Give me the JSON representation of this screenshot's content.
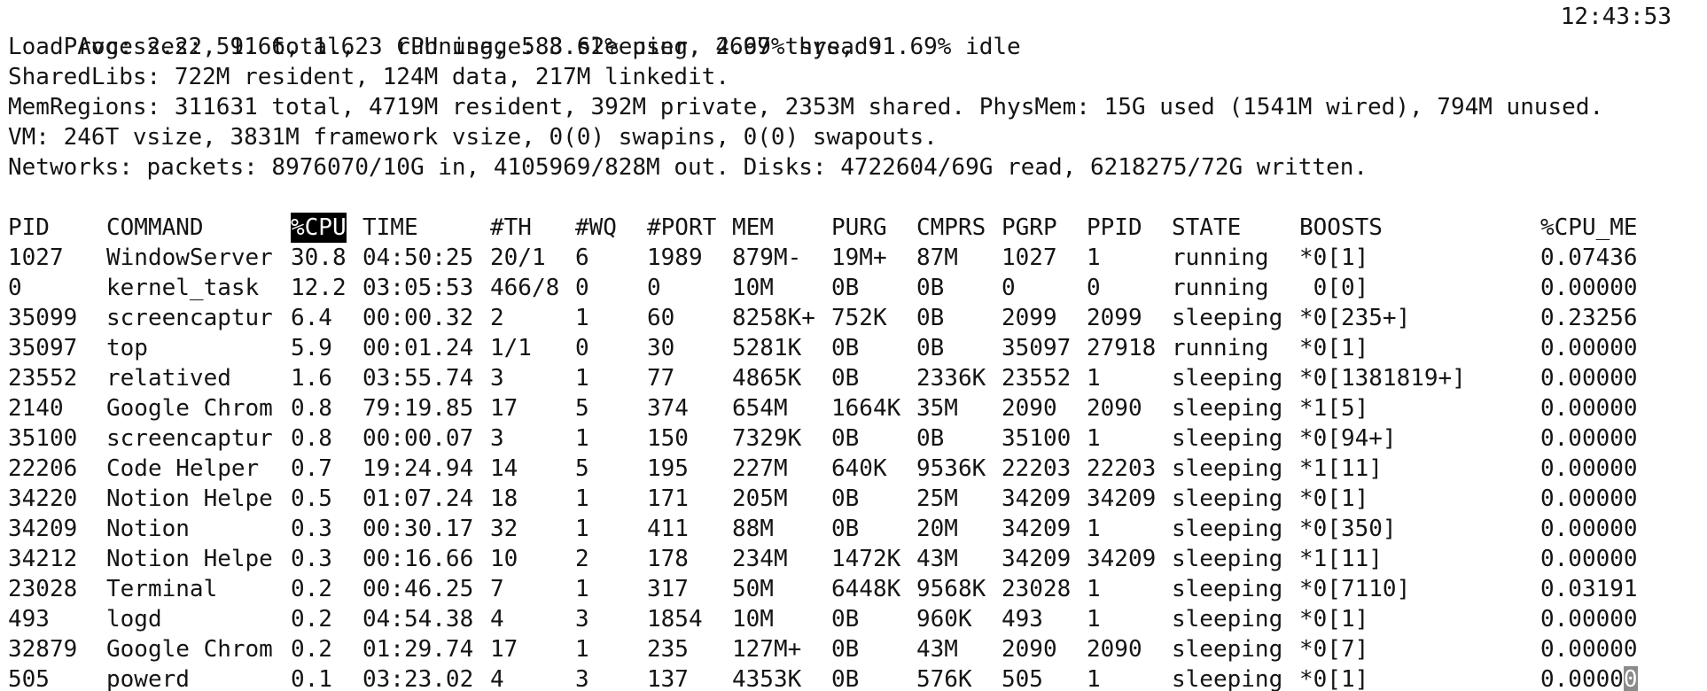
{
  "summary": {
    "processes": "Processes: 591 total, 3 running, 588 sleeping, 2699 threads",
    "clock": "12:43:53",
    "load": "Load Avg: 2.22, 1.66, 1.62  CPU usage: 3.62% user, 4.67% sys, 91.69% idle",
    "sharedlibs": "SharedLibs: 722M resident, 124M data, 217M linkedit.",
    "memregions": "MemRegions: 311631 total, 4719M resident, 392M private, 2353M shared. PhysMem: 15G used (1541M wired), 794M unused.",
    "vm": "VM: 246T vsize, 3831M framework vsize, 0(0) swapins, 0(0) swapouts.",
    "networks": "Networks: packets: 8976070/10G in, 4105969/828M out. Disks: 4722604/69G read, 6218275/72G written."
  },
  "table": {
    "headers": {
      "pid": "PID",
      "command": "COMMAND",
      "cpu": "%CPU",
      "time": "TIME",
      "th": "#TH",
      "wq": "#WQ",
      "port": "#PORT",
      "mem": "MEM",
      "purg": "PURG",
      "cmprs": "CMPRS",
      "pgrp": "PGRP",
      "ppid": "PPID",
      "state": "STATE",
      "boosts": "BOOSTS",
      "cpume": "%CPU_ME"
    },
    "sort_column": "%CPU",
    "rows": [
      {
        "pid": "1027",
        "command": "WindowServer",
        "cpu": "30.8",
        "time": "04:50:25",
        "th": "20/1",
        "wq": "6",
        "port": "1989",
        "mem": "879M-",
        "purg": "19M+",
        "cmprs": "87M",
        "pgrp": "1027",
        "ppid": "1",
        "state": "running",
        "boosts": "*0[1]",
        "cpume": "0.07436"
      },
      {
        "pid": "0",
        "command": "kernel_task",
        "cpu": "12.2",
        "time": "03:05:53",
        "th": "466/8",
        "wq": "0",
        "port": "0",
        "mem": "10M",
        "purg": "0B",
        "cmprs": "0B",
        "pgrp": "0",
        "ppid": "0",
        "state": "running",
        "boosts": " 0[0]",
        "cpume": "0.00000"
      },
      {
        "pid": "35099",
        "command": "screencaptur",
        "cpu": "6.4",
        "time": "00:00.32",
        "th": "2",
        "wq": "1",
        "port": "60",
        "mem": "8258K+",
        "purg": "752K",
        "cmprs": "0B",
        "pgrp": "2099",
        "ppid": "2099",
        "state": "sleeping",
        "boosts": "*0[235+]",
        "cpume": "0.23256"
      },
      {
        "pid": "35097",
        "command": "top",
        "cpu": "5.9",
        "time": "00:01.24",
        "th": "1/1",
        "wq": "0",
        "port": "30",
        "mem": "5281K",
        "purg": "0B",
        "cmprs": "0B",
        "pgrp": "35097",
        "ppid": "27918",
        "state": "running",
        "boosts": "*0[1]",
        "cpume": "0.00000"
      },
      {
        "pid": "23552",
        "command": "relatived",
        "cpu": "1.6",
        "time": "03:55.74",
        "th": "3",
        "wq": "1",
        "port": "77",
        "mem": "4865K",
        "purg": "0B",
        "cmprs": "2336K",
        "pgrp": "23552",
        "ppid": "1",
        "state": "sleeping",
        "boosts": "*0[1381819+]",
        "cpume": "0.00000"
      },
      {
        "pid": "2140",
        "command": "Google Chrom",
        "cpu": "0.8",
        "time": "79:19.85",
        "th": "17",
        "wq": "5",
        "port": "374",
        "mem": "654M",
        "purg": "1664K",
        "cmprs": "35M",
        "pgrp": "2090",
        "ppid": "2090",
        "state": "sleeping",
        "boosts": "*1[5]",
        "cpume": "0.00000"
      },
      {
        "pid": "35100",
        "command": "screencaptur",
        "cpu": "0.8",
        "time": "00:00.07",
        "th": "3",
        "wq": "1",
        "port": "150",
        "mem": "7329K",
        "purg": "0B",
        "cmprs": "0B",
        "pgrp": "35100",
        "ppid": "1",
        "state": "sleeping",
        "boosts": "*0[94+]",
        "cpume": "0.00000"
      },
      {
        "pid": "22206",
        "command": "Code Helper",
        "cpu": "0.7",
        "time": "19:24.94",
        "th": "14",
        "wq": "5",
        "port": "195",
        "mem": "227M",
        "purg": "640K",
        "cmprs": "9536K",
        "pgrp": "22203",
        "ppid": "22203",
        "state": "sleeping",
        "boosts": "*1[11]",
        "cpume": "0.00000"
      },
      {
        "pid": "34220",
        "command": "Notion Helpe",
        "cpu": "0.5",
        "time": "01:07.24",
        "th": "18",
        "wq": "1",
        "port": "171",
        "mem": "205M",
        "purg": "0B",
        "cmprs": "25M",
        "pgrp": "34209",
        "ppid": "34209",
        "state": "sleeping",
        "boosts": "*0[1]",
        "cpume": "0.00000"
      },
      {
        "pid": "34209",
        "command": "Notion",
        "cpu": "0.3",
        "time": "00:30.17",
        "th": "32",
        "wq": "1",
        "port": "411",
        "mem": "88M",
        "purg": "0B",
        "cmprs": "20M",
        "pgrp": "34209",
        "ppid": "1",
        "state": "sleeping",
        "boosts": "*0[350]",
        "cpume": "0.00000"
      },
      {
        "pid": "34212",
        "command": "Notion Helpe",
        "cpu": "0.3",
        "time": "00:16.66",
        "th": "10",
        "wq": "2",
        "port": "178",
        "mem": "234M",
        "purg": "1472K",
        "cmprs": "43M",
        "pgrp": "34209",
        "ppid": "34209",
        "state": "sleeping",
        "boosts": "*1[11]",
        "cpume": "0.00000"
      },
      {
        "pid": "23028",
        "command": "Terminal",
        "cpu": "0.2",
        "time": "00:46.25",
        "th": "7",
        "wq": "1",
        "port": "317",
        "mem": "50M",
        "purg": "6448K",
        "cmprs": "9568K",
        "pgrp": "23028",
        "ppid": "1",
        "state": "sleeping",
        "boosts": "*0[7110]",
        "cpume": "0.03191"
      },
      {
        "pid": "493",
        "command": "logd",
        "cpu": "0.2",
        "time": "04:54.38",
        "th": "4",
        "wq": "3",
        "port": "1854",
        "mem": "10M",
        "purg": "0B",
        "cmprs": "960K",
        "pgrp": "493",
        "ppid": "1",
        "state": "sleeping",
        "boosts": "*0[1]",
        "cpume": "0.00000"
      },
      {
        "pid": "32879",
        "command": "Google Chrom",
        "cpu": "0.2",
        "time": "01:29.74",
        "th": "17",
        "wq": "1",
        "port": "235",
        "mem": "127M+",
        "purg": "0B",
        "cmprs": "43M",
        "pgrp": "2090",
        "ppid": "2090",
        "state": "sleeping",
        "boosts": "*0[7]",
        "cpume": "0.00000"
      },
      {
        "pid": "505",
        "command": "powerd",
        "cpu": "0.1",
        "time": "03:23.02",
        "th": "4",
        "wq": "3",
        "port": "137",
        "mem": "4353K",
        "purg": "0B",
        "cmprs": "576K",
        "pgrp": "505",
        "ppid": "1",
        "state": "sleeping",
        "boosts": "*0[1]",
        "cpume": "0.0000",
        "cpume_cursor": "0"
      }
    ]
  }
}
